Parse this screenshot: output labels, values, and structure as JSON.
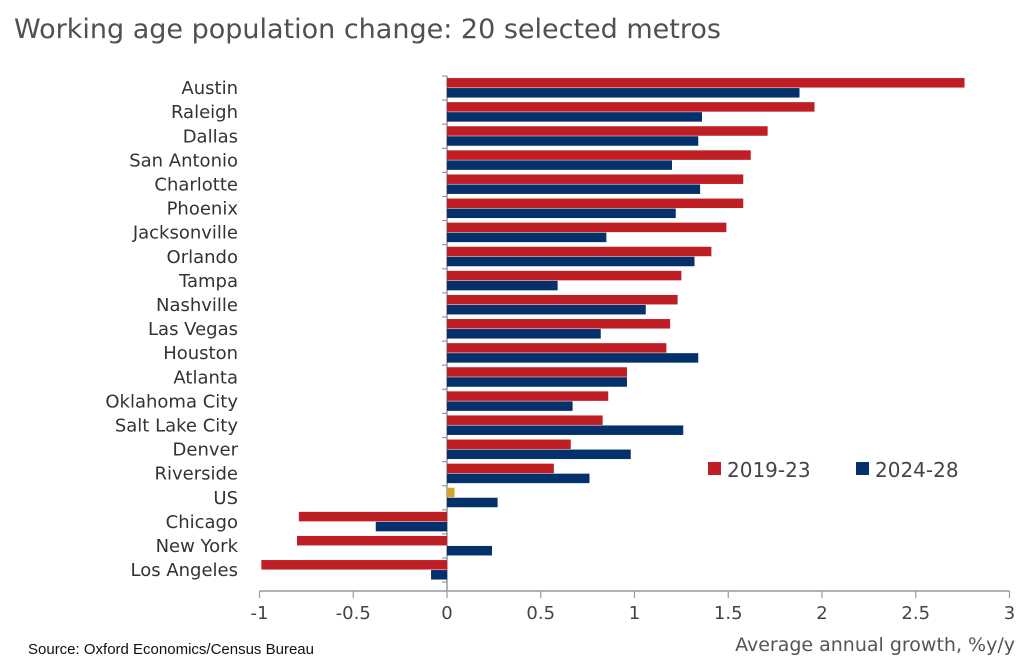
{
  "chart_data": {
    "type": "bar",
    "orientation": "horizontal",
    "title": "Working age population change: 20 selected metros",
    "xlabel": "Average annual growth, %y/y",
    "ylabel": "",
    "source": "Source: Oxford Economics/Census Bureau",
    "xlim": [
      -1,
      3
    ],
    "xticks": [
      "-1",
      "-0.5",
      "0",
      "0.5",
      "1",
      "1.5",
      "2",
      "2.5",
      "3"
    ],
    "grid": false,
    "legend_placement": "lower-right",
    "categories": [
      "Austin",
      "Raleigh",
      "Dallas",
      "San Antonio",
      "Charlotte",
      "Phoenix",
      "Jacksonville",
      "Orlando",
      "Tampa",
      "Nashville",
      "Las Vegas",
      "Houston",
      "Atlanta",
      "Oklahoma City",
      "Salt Lake City",
      "Denver",
      "Riverside",
      "US",
      "Chicago",
      "New York",
      "Los Angeles"
    ],
    "series": [
      {
        "name": "2019-23",
        "color": "#be1e24",
        "values": [
          2.76,
          1.96,
          1.71,
          1.62,
          1.58,
          1.58,
          1.49,
          1.41,
          1.25,
          1.23,
          1.19,
          1.17,
          0.96,
          0.86,
          0.83,
          0.66,
          0.57,
          0.04,
          -0.79,
          -0.8,
          -0.99
        ]
      },
      {
        "name": "2024-28",
        "color": "#04306b",
        "values": [
          1.88,
          1.36,
          1.34,
          1.2,
          1.35,
          1.22,
          0.85,
          1.32,
          0.59,
          1.06,
          0.82,
          1.34,
          0.96,
          0.67,
          1.26,
          0.98,
          0.76,
          0.27,
          -0.38,
          0.24,
          -0.085
        ]
      }
    ],
    "highlight": {
      "category": "US",
      "series": "2019-23",
      "color": "#d4a72c"
    }
  }
}
